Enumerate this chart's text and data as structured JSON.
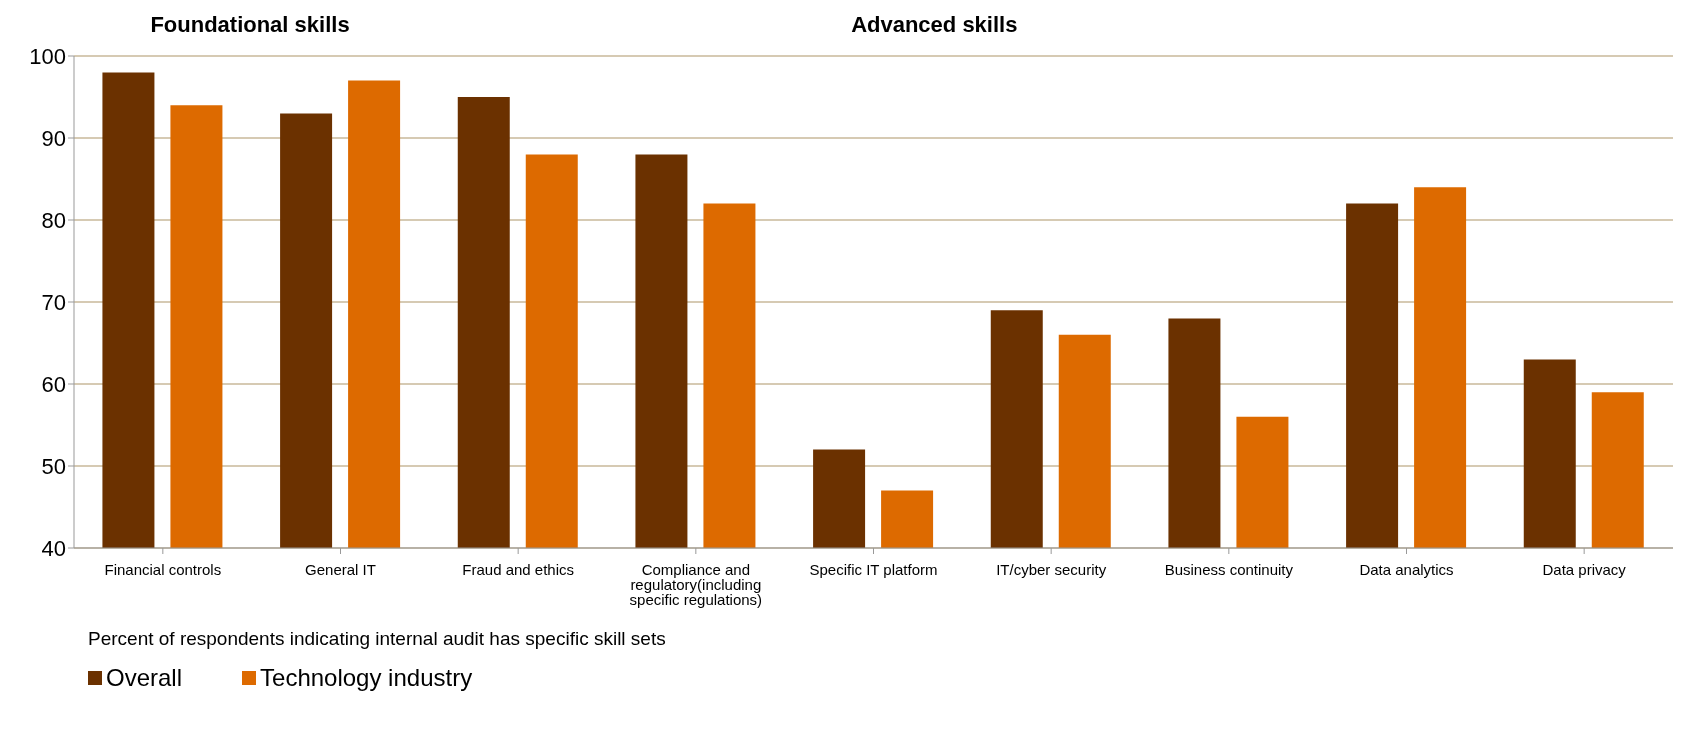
{
  "chart_data": {
    "type": "bar",
    "categories": [
      "Financial controls",
      "General IT",
      "Fraud and ethics",
      "Compliance and regulatory(including specific regulations)",
      "Specific IT platform",
      "IT/cyber security",
      "Business continuity",
      "Data analytics",
      "Data privacy"
    ],
    "series": [
      {
        "name": "Overall",
        "color": "#6b3100",
        "values": [
          98,
          93,
          95,
          88,
          52,
          69,
          68,
          82,
          63
        ]
      },
      {
        "name": "Technology industry",
        "color": "#dd6a00",
        "values": [
          94,
          97,
          88,
          82,
          47,
          66,
          56,
          84,
          59
        ]
      }
    ],
    "ylim": [
      40,
      100
    ],
    "yticks": [
      40,
      50,
      60,
      70,
      80,
      90,
      100
    ],
    "grid": "y",
    "legend": "bottom left",
    "annotations": [
      "Foundational skills",
      "Advanced skills",
      "Percent of respondents indicating internal audit has specific skill sets"
    ]
  }
}
